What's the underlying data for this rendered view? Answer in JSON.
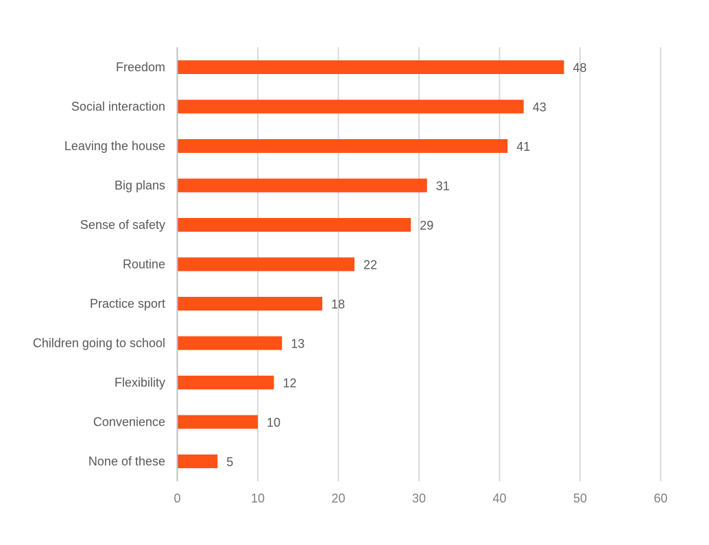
{
  "chart_data": {
    "type": "bar",
    "orientation": "horizontal",
    "categories": [
      "Freedom",
      "Social interaction",
      "Leaving the house",
      "Big plans",
      "Sense of safety",
      "Routine",
      "Practice sport",
      "Children going to school",
      "Flexibility",
      "Convenience",
      "None of these"
    ],
    "values": [
      48,
      43,
      41,
      31,
      29,
      22,
      18,
      13,
      12,
      10,
      5
    ],
    "data_labels": [
      "48",
      "43",
      "41",
      "31",
      "29",
      "22",
      "18",
      "13",
      "12",
      "10",
      "5"
    ],
    "x_ticks": [
      "0",
      "10",
      "20",
      "30",
      "40",
      "50",
      "60"
    ],
    "xlim": [
      0,
      60
    ],
    "grid": true,
    "title": "",
    "xlabel": "",
    "ylabel": "",
    "colors": {
      "bar": "#FF5216",
      "gridline": "#D9D9D9",
      "axis": "#BFBFBF",
      "label_text": "#595959",
      "tick_text": "#7F7F7F"
    }
  }
}
